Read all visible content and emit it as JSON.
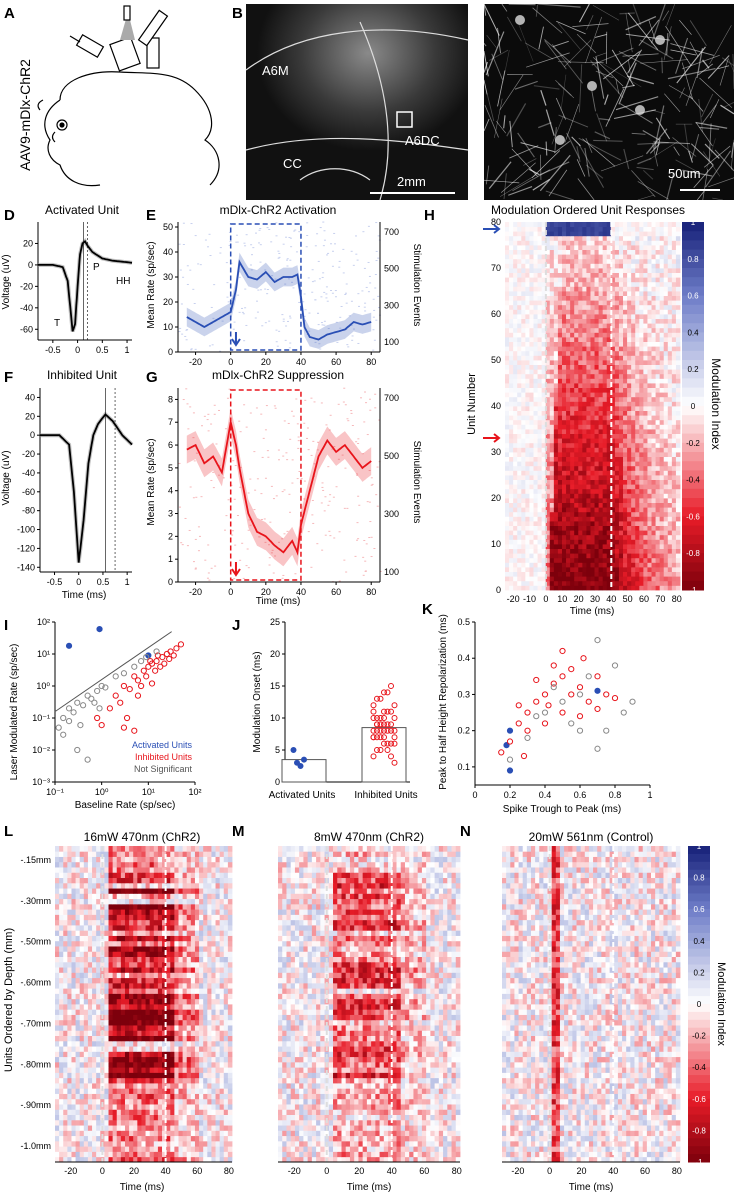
{
  "panel_labels": [
    "A",
    "B",
    "C",
    "D",
    "E",
    "F",
    "G",
    "H",
    "I",
    "J",
    "K",
    "L",
    "M",
    "N"
  ],
  "panel_a": {
    "construct": "AAV9-mDlx-ChR2"
  },
  "panel_b": {
    "regions": [
      "A6M",
      "A6DC",
      "CC"
    ],
    "scale_bar": "2mm"
  },
  "panel_c": {
    "scale_bar": "50um"
  },
  "colors": {
    "activated": "#2a4fb5",
    "inhibited": "#e8141b",
    "not_significant": "#888888"
  },
  "chart_data": [
    {
      "id": "D",
      "type": "line",
      "title": "Activated Unit",
      "ylabel": "Voltage (uV)",
      "xlabel": "",
      "xlim": [
        -0.8,
        1.1
      ],
      "ylim": [
        -70,
        40
      ],
      "xticks": [
        -0.5,
        0,
        0.5,
        1
      ],
      "yticks": [
        -60,
        -40,
        -20,
        0,
        20
      ],
      "annotations": [
        "T",
        "P",
        "HH"
      ],
      "x": [
        -0.8,
        -0.5,
        -0.3,
        -0.2,
        -0.1,
        -0.05,
        0,
        0.05,
        0.1,
        0.15,
        0.2,
        0.3,
        0.5,
        0.7,
        0.9,
        1.1
      ],
      "y": [
        0,
        0,
        -2,
        -15,
        -62,
        -55,
        -20,
        10,
        20,
        22,
        18,
        12,
        6,
        4,
        3,
        2
      ]
    },
    {
      "id": "E",
      "type": "line",
      "title": "mDlx-ChR2 Activation",
      "ylabel": "Mean Rate (sp/sec)",
      "ylabel_right": "Stimulation Events",
      "xlim": [
        -30,
        85
      ],
      "ylim": [
        0,
        52
      ],
      "xticks": [
        -20,
        0,
        20,
        40,
        60,
        80
      ],
      "yticks": [
        0,
        10,
        20,
        30,
        40,
        50
      ],
      "yticks_right": [
        100,
        300,
        500,
        700
      ],
      "stim_window_ms": [
        0,
        40
      ],
      "x": [
        -25,
        -20,
        -15,
        -10,
        -5,
        0,
        3,
        5,
        10,
        15,
        20,
        25,
        30,
        35,
        38,
        40,
        42,
        45,
        50,
        55,
        60,
        65,
        70,
        75,
        80
      ],
      "y": [
        14,
        12,
        10,
        12,
        14,
        16,
        25,
        36,
        30,
        29,
        32,
        28,
        30,
        30,
        31,
        22,
        10,
        6,
        5,
        7,
        8,
        9,
        12,
        11,
        12
      ]
    },
    {
      "id": "F",
      "type": "line",
      "title": "Inhibited Unit",
      "ylabel": "Voltage (uV)",
      "xlabel": "Time (ms)",
      "xlim": [
        -0.8,
        1.1
      ],
      "ylim": [
        -145,
        50
      ],
      "xticks": [
        -0.5,
        0,
        0.5,
        1
      ],
      "yticks": [
        -140,
        -120,
        -100,
        -80,
        -60,
        -40,
        -20,
        0,
        20,
        40
      ],
      "x": [
        -0.8,
        -0.4,
        -0.2,
        -0.1,
        0,
        0.1,
        0.2,
        0.3,
        0.4,
        0.55,
        0.7,
        0.9,
        1.1
      ],
      "y": [
        0,
        0,
        -10,
        -60,
        -135,
        -90,
        -30,
        0,
        12,
        22,
        15,
        0,
        -10
      ]
    },
    {
      "id": "G",
      "type": "line",
      "title": "mDlx-ChR2 Suppression",
      "ylabel": "Mean Rate (sp/sec)",
      "ylabel_right": "Stimulation Events",
      "xlabel": "Time (ms)",
      "xlim": [
        -30,
        85
      ],
      "ylim": [
        0,
        8.5
      ],
      "xticks": [
        -20,
        0,
        20,
        40,
        60,
        80
      ],
      "yticks": [
        0,
        1,
        2,
        3,
        4,
        5,
        6,
        7,
        8
      ],
      "yticks_right": [
        100,
        300,
        500,
        700
      ],
      "stim_window_ms": [
        0,
        40
      ],
      "x": [
        -25,
        -20,
        -15,
        -10,
        -5,
        0,
        3,
        5,
        10,
        15,
        20,
        25,
        30,
        35,
        38,
        40,
        45,
        50,
        55,
        60,
        65,
        70,
        75,
        80
      ],
      "y": [
        5.8,
        6,
        5.2,
        5.5,
        4.8,
        7,
        6,
        5,
        3,
        2.2,
        2,
        1.6,
        1.3,
        1.8,
        1.3,
        2.5,
        4,
        5.5,
        6.2,
        5.7,
        6,
        5.5,
        5,
        5.3
      ]
    },
    {
      "id": "H",
      "type": "heatmap",
      "title": "Modulation Ordered Unit Responses",
      "ylabel": "Unit Number",
      "xlabel": "Time (ms)",
      "colorbar_label": "Modulation Index",
      "units": 80,
      "xlim": [
        -25,
        82
      ],
      "xticks": [
        -20,
        -10,
        0,
        10,
        20,
        30,
        40,
        50,
        60,
        70,
        80
      ],
      "yticks": [
        0,
        10,
        20,
        30,
        40,
        50,
        60,
        70,
        80
      ],
      "colorbar_ticks": [
        1,
        0.8,
        0.6,
        0.4,
        0.2,
        0,
        -0.2,
        -0.4,
        -0.6,
        -0.8,
        -1
      ],
      "stim_window_ms": [
        0,
        40
      ]
    },
    {
      "id": "I",
      "type": "scatter",
      "xlabel": "Baseline Rate (sp/sec)",
      "ylabel": "Laser Modulated Rate (sp/sec)",
      "xscale": "log",
      "yscale": "log",
      "xlim": [
        0.1,
        100
      ],
      "ylim": [
        0.001,
        100
      ],
      "xticks": [
        "10⁻¹",
        "10⁰",
        "10¹",
        "10²"
      ],
      "yticks": [
        "10⁻³",
        "10⁻²",
        "10⁻¹",
        "10⁰",
        "10¹",
        "10²"
      ],
      "legend": [
        "Activated Units",
        "Inhibited Units",
        "Not Significant"
      ],
      "legend_position": "bottom-right",
      "series": [
        {
          "name": "Activated Units",
          "points": [
            [
              0.2,
              18
            ],
            [
              0.9,
              60
            ],
            [
              10,
              9
            ]
          ]
        },
        {
          "name": "Inhibited Units",
          "points": [
            [
              3,
              1
            ],
            [
              5,
              2
            ],
            [
              8,
              3
            ],
            [
              10,
              4
            ],
            [
              12,
              5
            ],
            [
              15,
              6
            ],
            [
              20,
              8
            ],
            [
              25,
              10
            ],
            [
              30,
              12
            ],
            [
              40,
              15
            ],
            [
              2,
              0.5
            ],
            [
              4,
              0.8
            ],
            [
              6,
              1.5
            ],
            [
              9,
              2
            ],
            [
              14,
              3
            ],
            [
              18,
              4
            ],
            [
              1.5,
              0.2
            ],
            [
              2.5,
              0.3
            ],
            [
              3.5,
              0.1
            ],
            [
              1,
              0.06
            ],
            [
              0.8,
              0.1
            ],
            [
              6,
              0.5
            ],
            [
              7,
              1
            ],
            [
              11,
              6
            ],
            [
              16,
              9
            ],
            [
              22,
              5
            ],
            [
              28,
              7
            ],
            [
              35,
              9
            ],
            [
              50,
              20
            ],
            [
              5,
              0.04
            ],
            [
              3,
              0.05
            ],
            [
              12,
              1.2
            ]
          ]
        },
        {
          "name": "Not Significant",
          "points": [
            [
              0.12,
              0.05
            ],
            [
              0.15,
              0.1
            ],
            [
              0.2,
              0.2
            ],
            [
              0.3,
              0.3
            ],
            [
              0.25,
              0.15
            ],
            [
              0.4,
              0.25
            ],
            [
              0.5,
              0.5
            ],
            [
              0.6,
              0.4
            ],
            [
              0.8,
              0.7
            ],
            [
              1,
              1
            ],
            [
              1.2,
              0.9
            ],
            [
              0.15,
              0.03
            ],
            [
              0.3,
              0.01
            ],
            [
              0.5,
              0.005
            ],
            [
              2,
              2
            ],
            [
              3,
              2.5
            ],
            [
              5,
              4
            ],
            [
              7,
              6
            ],
            [
              9,
              8
            ],
            [
              15,
              12
            ],
            [
              0.7,
              0.3
            ],
            [
              0.9,
              0.2
            ],
            [
              0.2,
              0.08
            ],
            [
              0.35,
              0.06
            ]
          ]
        }
      ]
    },
    {
      "id": "J",
      "type": "bar",
      "ylabel": "Modulation Onset (ms)",
      "categories": [
        "Activated Units",
        "Inhibited Units"
      ],
      "values": [
        3.5,
        8.5
      ],
      "ylim": [
        0,
        25
      ],
      "yticks": [
        0,
        5,
        10,
        15,
        20,
        25
      ],
      "points": [
        [
          5,
          3,
          2.5,
          3.5
        ],
        [
          4,
          5,
          5,
          6,
          6,
          6,
          7,
          7,
          7,
          7,
          8,
          8,
          8,
          8,
          8,
          9,
          9,
          9,
          9,
          9,
          10,
          10,
          10,
          10,
          11,
          11,
          11,
          12,
          12,
          13,
          13,
          14,
          14,
          15,
          6,
          7,
          8,
          9,
          10,
          5,
          4,
          3,
          11,
          9,
          8,
          7
        ]
      ]
    },
    {
      "id": "K",
      "type": "scatter",
      "xlabel": "Spike Trough to Peak (ms)",
      "ylabel": "Peak to Half Height Repolarization (ms)",
      "xlim": [
        0,
        1
      ],
      "ylim": [
        0.05,
        0.5
      ],
      "xticks": [
        0,
        0.2,
        0.4,
        0.6,
        0.8,
        1
      ],
      "yticks": [
        0.1,
        0.2,
        0.3,
        0.4,
        0.5
      ],
      "series": [
        {
          "name": "Activated Units",
          "points": [
            [
              0.2,
              0.09
            ],
            [
              0.2,
              0.2
            ],
            [
              0.18,
              0.16
            ],
            [
              0.7,
              0.31
            ]
          ]
        },
        {
          "name": "Inhibited Units",
          "points": [
            [
              0.15,
              0.14
            ],
            [
              0.2,
              0.17
            ],
            [
              0.25,
              0.22
            ],
            [
              0.3,
              0.25
            ],
            [
              0.35,
              0.28
            ],
            [
              0.4,
              0.3
            ],
            [
              0.45,
              0.33
            ],
            [
              0.5,
              0.35
            ],
            [
              0.55,
              0.3
            ],
            [
              0.6,
              0.32
            ],
            [
              0.65,
              0.28
            ],
            [
              0.7,
              0.26
            ],
            [
              0.75,
              0.3
            ],
            [
              0.4,
              0.22
            ],
            [
              0.5,
              0.25
            ],
            [
              0.35,
              0.34
            ],
            [
              0.45,
              0.38
            ],
            [
              0.55,
              0.37
            ],
            [
              0.3,
              0.2
            ],
            [
              0.6,
              0.24
            ],
            [
              0.5,
              0.42
            ],
            [
              0.7,
              0.35
            ],
            [
              0.8,
              0.29
            ],
            [
              0.25,
              0.27
            ],
            [
              0.42,
              0.27
            ],
            [
              0.62,
              0.4
            ],
            [
              0.28,
              0.13
            ]
          ]
        },
        {
          "name": "Not Significant",
          "points": [
            [
              0.2,
              0.12
            ],
            [
              0.3,
              0.18
            ],
            [
              0.4,
              0.25
            ],
            [
              0.5,
              0.28
            ],
            [
              0.6,
              0.3
            ],
            [
              0.7,
              0.45
            ],
            [
              0.8,
              0.38
            ],
            [
              0.65,
              0.35
            ],
            [
              0.55,
              0.22
            ],
            [
              0.75,
              0.2
            ],
            [
              0.85,
              0.25
            ],
            [
              0.9,
              0.28
            ],
            [
              0.45,
              0.32
            ],
            [
              0.7,
              0.15
            ],
            [
              0.35,
              0.24
            ],
            [
              0.6,
              0.2
            ]
          ]
        }
      ]
    },
    {
      "id": "L",
      "type": "heatmap",
      "title": "16mW 470nm (ChR2)",
      "ylabel": "Units Ordered by Depth (mm)",
      "xlabel": "Time (ms)",
      "xticks": [
        -20,
        0,
        20,
        40,
        60,
        80
      ],
      "depth_labels": [
        "-.15mm",
        "-.30mm",
        "-.50mm",
        "-.60mm",
        "-.70mm",
        "-.80mm",
        "-.90mm",
        "-1.0mm"
      ],
      "stim_window_ms": [
        0,
        40
      ]
    },
    {
      "id": "M",
      "type": "heatmap",
      "title": "8mW 470nm (ChR2)",
      "xlabel": "Time (ms)",
      "xticks": [
        -20,
        0,
        20,
        40,
        60,
        80
      ],
      "stim_window_ms": [
        0,
        40
      ]
    },
    {
      "id": "N",
      "type": "heatmap",
      "title": "20mW 561nm (Control)",
      "xlabel": "Time (ms)",
      "xticks": [
        -20,
        0,
        20,
        40,
        60,
        80
      ],
      "colorbar_label": "Modulation Index",
      "colorbar_ticks": [
        1,
        0.8,
        0.6,
        0.4,
        0.2,
        0,
        -0.2,
        -0.4,
        -0.6,
        -0.8,
        -1
      ],
      "stim_window_ms": [
        0,
        40
      ]
    }
  ]
}
